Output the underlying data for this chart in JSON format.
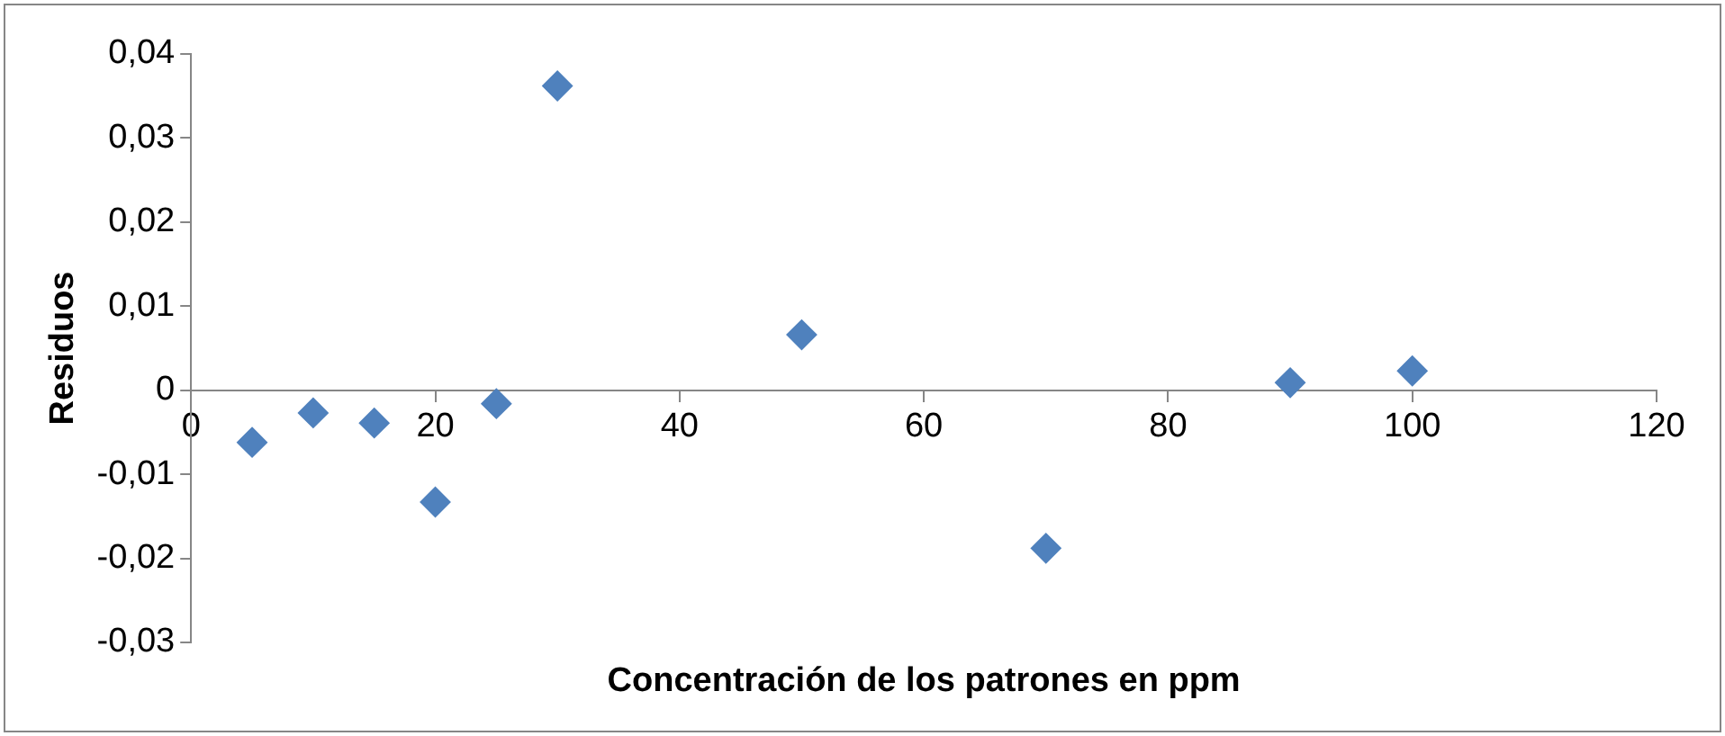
{
  "chart_data": {
    "type": "scatter",
    "xlabel": "Concentración de los patrones en ppm",
    "ylabel": "Residuos",
    "x": [
      5,
      10,
      15,
      20,
      25,
      30,
      50,
      70,
      90,
      100
    ],
    "values": [
      -0.0062,
      -0.0027,
      -0.0039,
      -0.0133,
      -0.0016,
      0.0362,
      0.0066,
      -0.0188,
      0.0009,
      0.0023
    ],
    "color": "#4f81bd",
    "marker": "diamond",
    "xlim": [
      0,
      120
    ],
    "xticks": [
      0,
      20,
      40,
      60,
      80,
      100,
      120
    ],
    "ylim": [
      -0.03,
      0.04
    ],
    "yticks": [
      {
        "value": -0.03,
        "label": "-0,03"
      },
      {
        "value": -0.02,
        "label": "-0,02"
      },
      {
        "value": -0.01,
        "label": "-0,01"
      },
      0,
      {
        "value": 0.01,
        "label": "0,01"
      },
      {
        "value": 0.02,
        "label": "0,02"
      },
      {
        "value": 0.03,
        "label": "0,03"
      },
      {
        "value": 0.04,
        "label": "0,04"
      }
    ],
    "legend": false
  }
}
